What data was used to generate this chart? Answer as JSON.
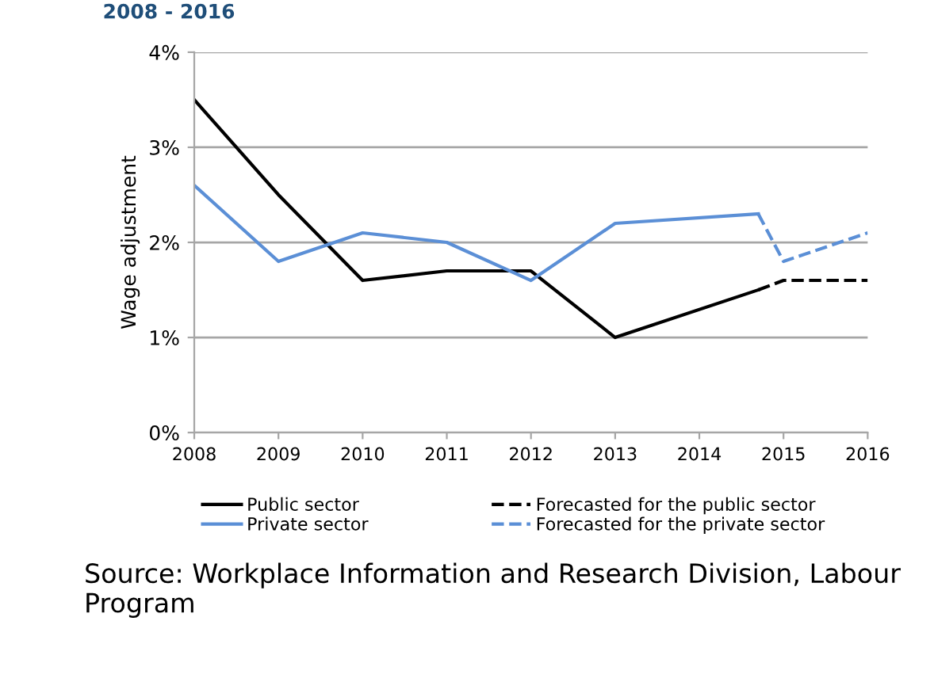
{
  "chart_data": {
    "type": "line",
    "title": "2008 - 2016",
    "ylabel": "Wage adjustment",
    "series": [
      {
        "name": "Public sector",
        "color": "#000000",
        "x": [
          2008,
          2009,
          2010,
          2011,
          2012,
          2013,
          2014.7
        ],
        "values": [
          3.5,
          2.5,
          1.6,
          1.7,
          1.7,
          1.0,
          1.5
        ],
        "line_style": "solid"
      },
      {
        "name": "Private sector",
        "color": "#5b8fd6",
        "x": [
          2008,
          2009,
          2010,
          2011,
          2012,
          2013,
          2014.7
        ],
        "values": [
          2.6,
          1.8,
          2.1,
          2.0,
          1.6,
          2.2,
          2.3
        ],
        "line_style": "solid"
      },
      {
        "name": "Forecasted for the public sector",
        "color": "#000000",
        "x": [
          2014.7,
          2015,
          2016
        ],
        "values": [
          1.5,
          1.6,
          1.6
        ],
        "line_style": "dashed"
      },
      {
        "name": "Forecasted for the private sector",
        "color": "#5b8fd6",
        "x": [
          2014.7,
          2015,
          2016
        ],
        "values": [
          2.3,
          1.8,
          2.1
        ],
        "line_style": "dashed"
      }
    ],
    "xlim": [
      2008,
      2016
    ],
    "xticks": [
      2008,
      2009,
      2010,
      2011,
      2012,
      2013,
      2014,
      2015,
      2016
    ],
    "ylim": [
      0,
      4
    ],
    "yticks": [
      {
        "value": 0,
        "label": "0%"
      },
      {
        "value": 1,
        "label": "1%"
      },
      {
        "value": 2,
        "label": "2%"
      },
      {
        "value": 3,
        "label": "3%"
      },
      {
        "value": 4,
        "label": "4%"
      }
    ],
    "grid": "y",
    "legend": "bottom",
    "annotations": [
      "Source: Workplace Information and Research Division, Labour Program"
    ]
  }
}
